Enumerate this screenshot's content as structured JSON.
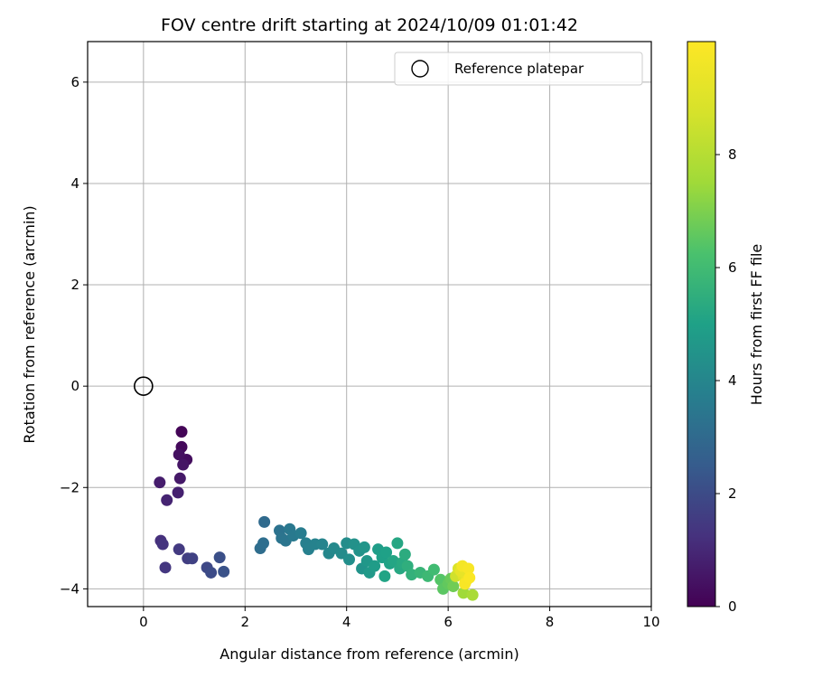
{
  "chart_data": {
    "type": "scatter",
    "title": "FOV centre drift starting at 2024/10/09 01:01:42",
    "xlabel": "Angular distance from reference (arcmin)",
    "ylabel": "Rotation from reference (arcmin)",
    "xlim": [
      -1.1,
      10
    ],
    "ylim": [
      -4.35,
      6.8
    ],
    "xticks": [
      0,
      2,
      4,
      6,
      8,
      10
    ],
    "yticks": [
      -4,
      -2,
      0,
      2,
      4,
      6
    ],
    "grid": true,
    "legend": {
      "placement": "top-right",
      "entries": [
        "Reference platepar"
      ]
    },
    "reference_point": {
      "name": "Reference platepar",
      "x": 0.0,
      "y": 0.0,
      "marker": "hollow-circle"
    },
    "colorbar": {
      "label": "Hours from first FF file",
      "colormap": "viridis",
      "range": [
        0,
        10
      ],
      "ticks": [
        0,
        2,
        4,
        6,
        8
      ]
    },
    "points": [
      {
        "x": 0.75,
        "y": -0.9,
        "t": 0.1
      },
      {
        "x": 0.75,
        "y": -1.2,
        "t": 0.2
      },
      {
        "x": 0.85,
        "y": -1.45,
        "t": 0.3
      },
      {
        "x": 0.7,
        "y": -1.35,
        "t": 0.4
      },
      {
        "x": 0.78,
        "y": -1.55,
        "t": 0.5
      },
      {
        "x": 0.72,
        "y": -1.82,
        "t": 0.6
      },
      {
        "x": 0.32,
        "y": -1.9,
        "t": 0.7
      },
      {
        "x": 0.68,
        "y": -2.1,
        "t": 0.8
      },
      {
        "x": 0.46,
        "y": -2.25,
        "t": 0.9
      },
      {
        "x": 0.34,
        "y": -3.05,
        "t": 1.2
      },
      {
        "x": 0.38,
        "y": -3.12,
        "t": 1.3
      },
      {
        "x": 0.43,
        "y": -3.58,
        "t": 1.4
      },
      {
        "x": 0.7,
        "y": -3.22,
        "t": 1.5
      },
      {
        "x": 0.87,
        "y": -3.4,
        "t": 1.6
      },
      {
        "x": 0.96,
        "y": -3.4,
        "t": 1.7
      },
      {
        "x": 1.25,
        "y": -3.58,
        "t": 1.9
      },
      {
        "x": 1.33,
        "y": -3.68,
        "t": 2.0
      },
      {
        "x": 1.5,
        "y": -3.38,
        "t": 2.1
      },
      {
        "x": 1.58,
        "y": -3.66,
        "t": 2.2
      },
      {
        "x": 2.38,
        "y": -2.68,
        "t": 3.0
      },
      {
        "x": 2.3,
        "y": -3.2,
        "t": 3.1
      },
      {
        "x": 2.36,
        "y": -3.1,
        "t": 3.15
      },
      {
        "x": 2.68,
        "y": -2.85,
        "t": 3.3
      },
      {
        "x": 2.72,
        "y": -3.0,
        "t": 3.35
      },
      {
        "x": 2.8,
        "y": -3.05,
        "t": 3.4
      },
      {
        "x": 2.88,
        "y": -2.82,
        "t": 3.5
      },
      {
        "x": 2.95,
        "y": -2.95,
        "t": 3.55
      },
      {
        "x": 3.1,
        "y": -2.9,
        "t": 3.65
      },
      {
        "x": 3.2,
        "y": -3.1,
        "t": 3.75
      },
      {
        "x": 3.25,
        "y": -3.22,
        "t": 3.8
      },
      {
        "x": 3.38,
        "y": -3.12,
        "t": 3.85
      },
      {
        "x": 3.52,
        "y": -3.12,
        "t": 3.95
      },
      {
        "x": 3.65,
        "y": -3.3,
        "t": 4.05
      },
      {
        "x": 3.75,
        "y": -3.2,
        "t": 4.1
      },
      {
        "x": 3.9,
        "y": -3.3,
        "t": 4.2
      },
      {
        "x": 4.0,
        "y": -3.1,
        "t": 4.25
      },
      {
        "x": 4.05,
        "y": -3.42,
        "t": 4.3
      },
      {
        "x": 4.15,
        "y": -3.12,
        "t": 4.4
      },
      {
        "x": 4.25,
        "y": -3.25,
        "t": 4.45
      },
      {
        "x": 4.3,
        "y": -3.6,
        "t": 4.5
      },
      {
        "x": 4.35,
        "y": -3.18,
        "t": 4.55
      },
      {
        "x": 4.4,
        "y": -3.45,
        "t": 4.65
      },
      {
        "x": 4.45,
        "y": -3.68,
        "t": 4.7
      },
      {
        "x": 4.55,
        "y": -3.55,
        "t": 4.8
      },
      {
        "x": 4.62,
        "y": -3.22,
        "t": 4.85
      },
      {
        "x": 4.7,
        "y": -3.38,
        "t": 4.95
      },
      {
        "x": 4.78,
        "y": -3.28,
        "t": 5.0
      },
      {
        "x": 4.85,
        "y": -3.5,
        "t": 5.05
      },
      {
        "x": 4.75,
        "y": -3.75,
        "t": 5.1
      },
      {
        "x": 4.92,
        "y": -3.45,
        "t": 5.15
      },
      {
        "x": 5.0,
        "y": -3.1,
        "t": 5.2
      },
      {
        "x": 5.05,
        "y": -3.6,
        "t": 5.25
      },
      {
        "x": 5.1,
        "y": -3.48,
        "t": 5.3
      },
      {
        "x": 5.15,
        "y": -3.32,
        "t": 5.4
      },
      {
        "x": 5.2,
        "y": -3.55,
        "t": 5.5
      },
      {
        "x": 5.28,
        "y": -3.72,
        "t": 5.6
      },
      {
        "x": 5.45,
        "y": -3.68,
        "t": 5.75
      },
      {
        "x": 5.6,
        "y": -3.75,
        "t": 5.9
      },
      {
        "x": 5.72,
        "y": -3.62,
        "t": 6.0
      },
      {
        "x": 5.85,
        "y": -3.82,
        "t": 6.4
      },
      {
        "x": 5.9,
        "y": -4.0,
        "t": 6.5
      },
      {
        "x": 6.0,
        "y": -3.9,
        "t": 6.6
      },
      {
        "x": 6.05,
        "y": -3.8,
        "t": 6.7
      },
      {
        "x": 6.1,
        "y": -3.95,
        "t": 6.8
      },
      {
        "x": 6.3,
        "y": -4.08,
        "t": 7.5
      },
      {
        "x": 6.48,
        "y": -4.12,
        "t": 7.7
      },
      {
        "x": 6.15,
        "y": -3.75,
        "t": 8.6
      },
      {
        "x": 6.2,
        "y": -3.6,
        "t": 8.9
      },
      {
        "x": 6.3,
        "y": -3.75,
        "t": 9.1
      },
      {
        "x": 6.25,
        "y": -3.65,
        "t": 9.3
      },
      {
        "x": 6.35,
        "y": -3.85,
        "t": 9.5
      },
      {
        "x": 6.28,
        "y": -3.55,
        "t": 9.7
      },
      {
        "x": 6.4,
        "y": -3.6,
        "t": 9.8
      },
      {
        "x": 6.33,
        "y": -3.9,
        "t": 9.85
      },
      {
        "x": 6.42,
        "y": -3.78,
        "t": 9.9
      }
    ]
  }
}
